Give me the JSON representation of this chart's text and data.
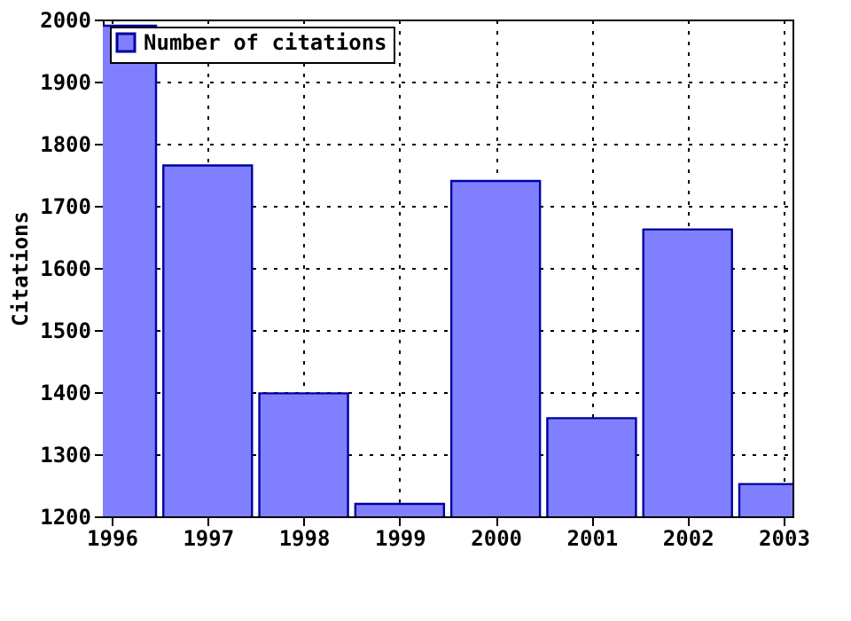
{
  "chart_data": {
    "type": "bar",
    "ylabel": "Citations",
    "x": [
      1996,
      1997,
      1998,
      1999,
      2000,
      2001,
      2002,
      2003
    ],
    "series": [
      {
        "name": "Number of citations",
        "color": "#8080ff",
        "values": [
          1990,
          1765,
          1398,
          1220,
          1740,
          1358,
          1662,
          1252
        ]
      }
    ],
    "xlim": [
      1996,
      2003
    ],
    "xticks": [
      1996,
      1997,
      1998,
      1999,
      2000,
      2001,
      2002,
      2003
    ],
    "ylim": [
      1200,
      2000
    ],
    "yticks": [
      1200,
      1300,
      1400,
      1500,
      1600,
      1700,
      1800,
      1900,
      2000
    ],
    "grid": true,
    "legend": "top left"
  }
}
